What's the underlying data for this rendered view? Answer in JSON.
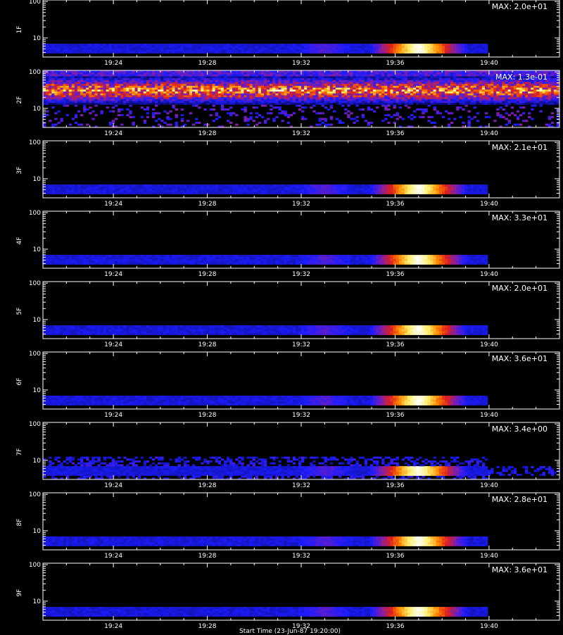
{
  "chart_data": {
    "type": "heatmap",
    "x_ticks": [
      "19:24",
      "19:28",
      "19:32",
      "19:36",
      "19:40"
    ],
    "x_range": [
      "19:21",
      "19:43"
    ],
    "y_scale": "log",
    "y_ticks": [
      "10",
      "100"
    ],
    "y_range": [
      3,
      110
    ],
    "colormap": [
      "#000000",
      "#0a0a6e",
      "#1c1cff",
      "#7a1eb4",
      "#e0201c",
      "#ff8a00",
      "#fff06e",
      "#ffffff"
    ],
    "panels": [
      {
        "label": "1F",
        "max_label": "MAX: 2.0e+01",
        "pattern": "peak"
      },
      {
        "label": "2F",
        "max_label": "MAX: 1.3e-01",
        "pattern": "noise"
      },
      {
        "label": "3F",
        "max_label": "MAX: 2.1e+01",
        "pattern": "peak"
      },
      {
        "label": "4F",
        "max_label": "MAX: 3.3e+01",
        "pattern": "peak"
      },
      {
        "label": "5F",
        "max_label": "MAX: 2.0e+01",
        "pattern": "peak"
      },
      {
        "label": "6F",
        "max_label": "MAX: 3.6e+01",
        "pattern": "peak"
      },
      {
        "label": "7F",
        "max_label": "MAX: 3.4e+00",
        "pattern": "peak-noisy"
      },
      {
        "label": "8F",
        "max_label": "MAX: 2.8e+01",
        "pattern": "peak"
      },
      {
        "label": "9F",
        "max_label": "MAX: 3.6e+01",
        "pattern": "peak"
      }
    ],
    "signal": {
      "active_window": [
        "19:21",
        "19:40"
      ],
      "band_y": [
        4,
        7
      ],
      "peak_window": [
        "19:35:30",
        "19:38:30"
      ],
      "secondary_peak": "19:33"
    },
    "noise_band_y": [
      20,
      50
    ]
  },
  "footer": {
    "text": "Start Time (23-Jun-87 19:20:00)"
  }
}
